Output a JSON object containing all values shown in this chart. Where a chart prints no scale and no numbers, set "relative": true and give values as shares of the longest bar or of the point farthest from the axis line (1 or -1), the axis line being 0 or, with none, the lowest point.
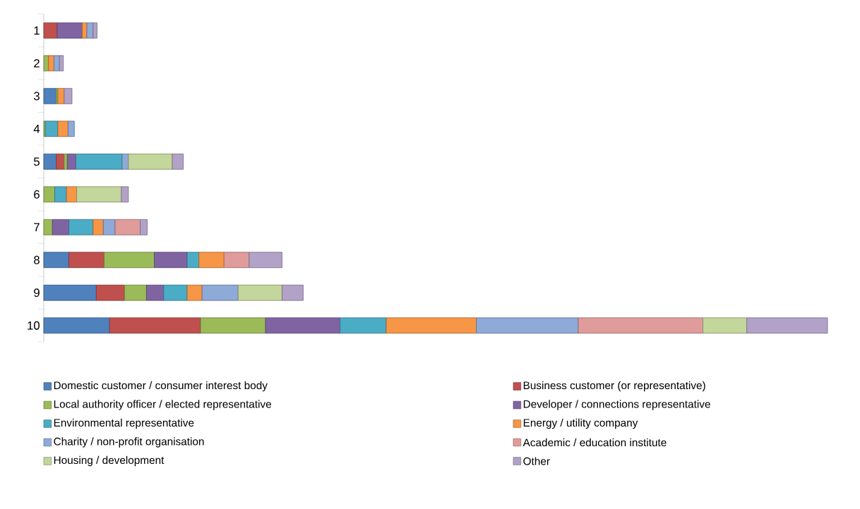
{
  "chart_data": {
    "type": "bar",
    "orientation": "horizontal",
    "stacked": true,
    "relative": true,
    "legend": "bottom",
    "grid": false,
    "categories": [
      "1",
      "2",
      "3",
      "4",
      "5",
      "6",
      "7",
      "8",
      "9",
      "10"
    ],
    "series": [
      {
        "name": "Domestic customer / consumer interest body",
        "color": "#4f81bd",
        "values": [
          0,
          0,
          0.016,
          0,
          0.016,
          0,
          0,
          0.032,
          0.067,
          0.084
        ]
      },
      {
        "name": "Business customer (or representative)",
        "color": "#c0504d",
        "values": [
          0.017,
          0,
          0,
          0,
          0.01,
          0,
          0,
          0.045,
          0.036,
          0.116
        ]
      },
      {
        "name": "Local authority officer / elected representative",
        "color": "#9bbb59",
        "values": [
          0,
          0.006,
          0.002,
          0.002,
          0.004,
          0.014,
          0.011,
          0.064,
          0.028,
          0.083
        ]
      },
      {
        "name": "Developer / connections representative",
        "color": "#8064a2",
        "values": [
          0.032,
          0,
          0,
          0,
          0.011,
          0,
          0.021,
          0.042,
          0.022,
          0.095
        ]
      },
      {
        "name": "Environmental representative",
        "color": "#4bacc6",
        "values": [
          0,
          0,
          0,
          0.016,
          0.059,
          0.015,
          0.031,
          0.015,
          0.03,
          0.059
        ]
      },
      {
        "name": "Energy / utility company",
        "color": "#f79646",
        "values": [
          0.006,
          0.007,
          0.008,
          0.013,
          0,
          0.013,
          0.013,
          0.032,
          0.019,
          0.115
        ]
      },
      {
        "name": "Charity / non-profit organisation",
        "color": "#8eaad8",
        "values": [
          0.008,
          0.007,
          0,
          0.008,
          0.008,
          0,
          0.015,
          0,
          0.046,
          0.13
        ]
      },
      {
        "name": "Academic / education institute",
        "color": "#e09c9a",
        "values": [
          0,
          0,
          0,
          0,
          0,
          0,
          0.032,
          0.032,
          0,
          0.159
        ]
      },
      {
        "name": "Housing / development",
        "color": "#c3d69b",
        "values": [
          0,
          0,
          0,
          0,
          0.056,
          0.057,
          0,
          0,
          0.056,
          0.056
        ]
      },
      {
        "name": "Other",
        "color": "#b3a2c7",
        "values": [
          0.005,
          0.005,
          0.01,
          0,
          0.014,
          0.009,
          0.009,
          0.042,
          0.027,
          0.103
        ]
      }
    ]
  }
}
